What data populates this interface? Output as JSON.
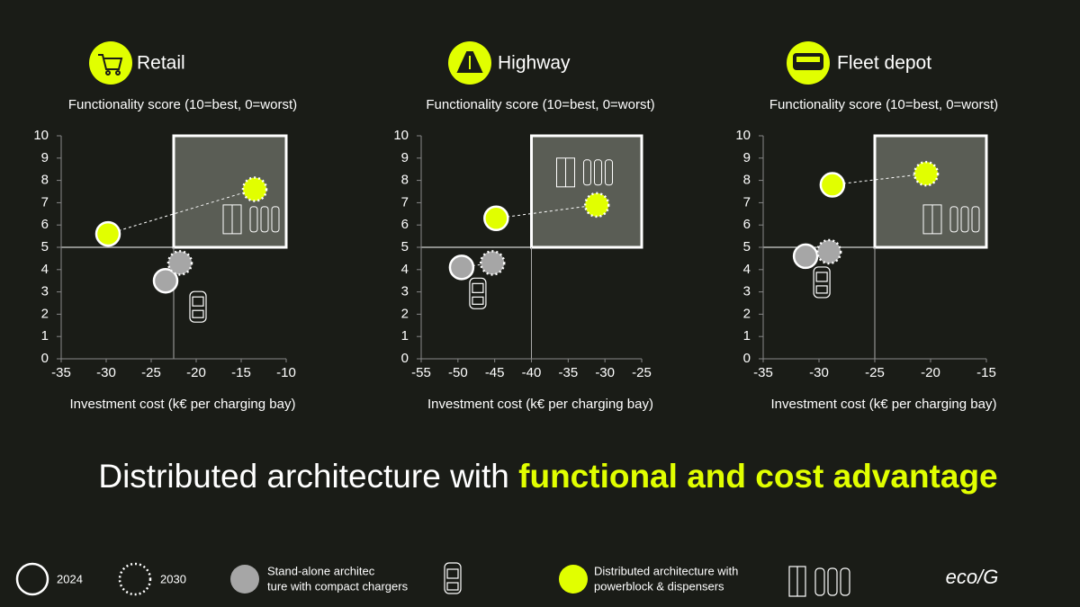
{
  "headline": {
    "text": "Distributed architecture with",
    "highlight": "functional and cost advantage"
  },
  "legend": {
    "years": [
      "2024",
      "2030"
    ],
    "architectures": [
      {
        "lines": [
          "Stand-alone architec",
          "ture with compact chargers"
        ],
        "color": "#a6a6a6"
      },
      {
        "lines": [
          "Distributed architecture with",
          "powerblock & dispensers"
        ],
        "color": "#e1ff00"
      }
    ]
  },
  "logo": "eco/G",
  "chart_data": [
    {
      "type": "scatter",
      "title": "Retail",
      "ylabel": "Functionality score (10=best, 0=worst)",
      "xlabel": "Investment cost (k€ per charging bay)",
      "xlim": [
        -35,
        -10
      ],
      "xticks": [
        -35,
        -30,
        -25,
        -20,
        -15,
        -10
      ],
      "ylim": [
        0,
        10
      ],
      "yticks": [
        0,
        1,
        2,
        3,
        4,
        5,
        6,
        7,
        8,
        9,
        10
      ],
      "threshold": {
        "x": -22.5,
        "y": 5
      },
      "series": [
        {
          "color": "#a6a6a6",
          "x": [
            -23.4,
            -21.8
          ],
          "values": [
            3.5,
            4.3
          ]
        },
        {
          "color": "#e1ff00",
          "x": [
            -29.8,
            -13.5
          ],
          "values": [
            5.6,
            7.6
          ]
        }
      ]
    },
    {
      "type": "scatter",
      "title": "Highway",
      "ylabel": "Functionality score (10=best, 0=worst)",
      "xlabel": "Investment cost (k€ per charging bay)",
      "xlim": [
        -55,
        -25
      ],
      "xticks": [
        -55,
        -50,
        -45,
        -40,
        -35,
        -30,
        -25
      ],
      "ylim": [
        0,
        10
      ],
      "yticks": [
        0,
        1,
        2,
        3,
        4,
        5,
        6,
        7,
        8,
        9,
        10
      ],
      "threshold": {
        "x": -40,
        "y": 5
      },
      "series": [
        {
          "color": "#a6a6a6",
          "x": [
            -49.5,
            -45.3
          ],
          "values": [
            4.1,
            4.3
          ]
        },
        {
          "color": "#e1ff00",
          "x": [
            -44.8,
            -31.1
          ],
          "values": [
            6.3,
            6.9
          ]
        }
      ]
    },
    {
      "type": "scatter",
      "title": "Fleet depot",
      "ylabel": "Functionality score (10=best, 0=worst)",
      "xlabel": "Investment cost (k€ per charging bay)",
      "xlim": [
        -35,
        -15
      ],
      "xticks": [
        -35,
        -30,
        -25,
        -20,
        -15
      ],
      "ylim": [
        0,
        10
      ],
      "yticks": [
        0,
        1,
        2,
        3,
        4,
        5,
        6,
        7,
        8,
        9,
        10
      ],
      "threshold": {
        "x": -25,
        "y": 5
      },
      "series": [
        {
          "color": "#a6a6a6",
          "x": [
            -31.2,
            -29.1
          ],
          "values": [
            4.6,
            4.8
          ]
        },
        {
          "color": "#e1ff00",
          "x": [
            -28.8,
            -20.4
          ],
          "values": [
            7.8,
            8.3
          ]
        }
      ]
    }
  ]
}
